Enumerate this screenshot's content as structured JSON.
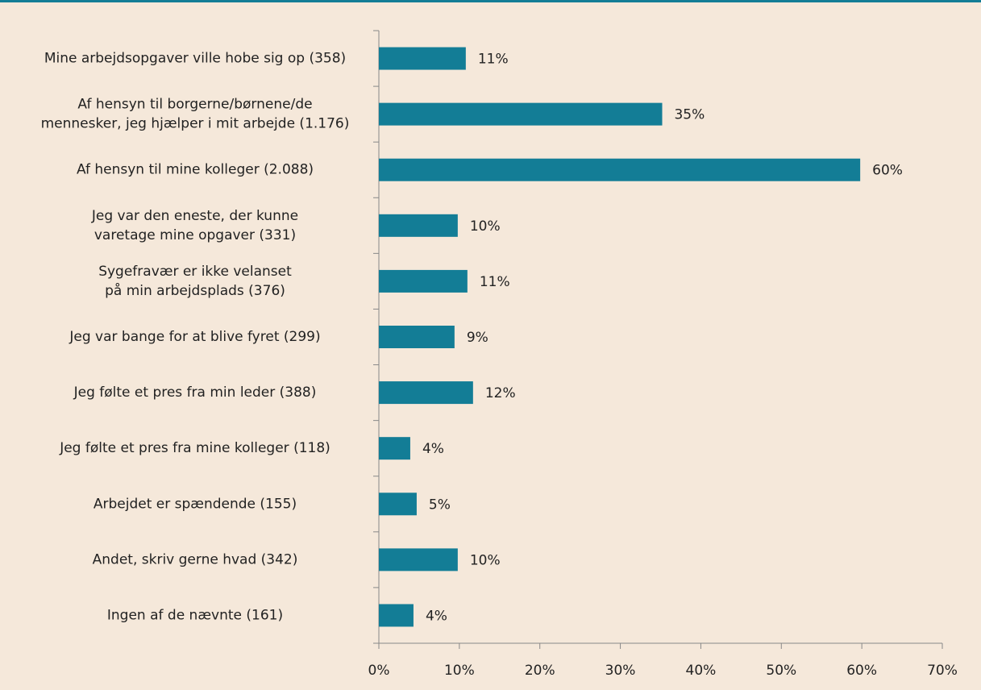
{
  "chart_data": {
    "type": "bar",
    "orientation": "horizontal",
    "categories": [
      "Mine arbejdsopgaver ville hobe sig op (358)",
      "Af hensyn til borgerne/børnene/de\nmennesker, jeg hjælper i mit arbejde (1.176)",
      "Af hensyn til mine kolleger (2.088)",
      "Jeg var den eneste, der kunne\nvaretage mine opgaver (331)",
      "Sygefravær er ikke velanset\npå min arbejdsplads (376)",
      "Jeg var bange for at blive fyret (299)",
      "Jeg følte et pres fra min leder (388)",
      "Jeg følte et pres fra mine kolleger (118)",
      "Arbejdet er spændende (155)",
      "Andet, skriv gerne hvad (342)",
      "Ingen af de nævnte (161)"
    ],
    "values": [
      10.8,
      35.2,
      59.8,
      9.8,
      11.0,
      9.4,
      11.7,
      3.9,
      4.7,
      9.8,
      4.3
    ],
    "value_labels": [
      "11%",
      "35%",
      "60%",
      "10%",
      "11%",
      "9%",
      "12%",
      "4%",
      "5%",
      "10%",
      "4%"
    ],
    "color": "#137d96",
    "xlim": [
      0,
      70
    ],
    "xticks": [
      {
        "value": 0,
        "label": "0%"
      },
      {
        "value": 10,
        "label": "10%"
      },
      {
        "value": 20,
        "label": "20%"
      },
      {
        "value": 30,
        "label": "30%"
      },
      {
        "value": 40,
        "label": "40%"
      },
      {
        "value": 50,
        "label": "50%"
      },
      {
        "value": 60,
        "label": "60%"
      },
      {
        "value": 70,
        "label": "70%"
      }
    ]
  }
}
